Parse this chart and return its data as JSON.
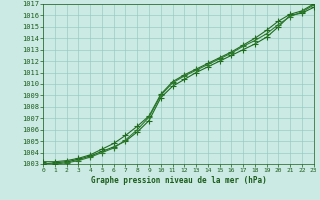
{
  "xlabel": "Graphe pression niveau de la mer (hPa)",
  "x": [
    0,
    1,
    2,
    3,
    4,
    5,
    6,
    7,
    8,
    9,
    10,
    11,
    12,
    13,
    14,
    15,
    16,
    17,
    18,
    19,
    20,
    21,
    22,
    23
  ],
  "line1": [
    1003.0,
    1003.1,
    1003.2,
    1003.4,
    1003.7,
    1004.1,
    1004.5,
    1005.0,
    1005.8,
    1006.8,
    1008.8,
    1009.8,
    1010.4,
    1011.0,
    1011.5,
    1012.0,
    1012.5,
    1013.0,
    1013.5,
    1014.1,
    1015.0,
    1016.0,
    1016.2,
    1016.7
  ],
  "line2": [
    1003.2,
    1003.2,
    1003.3,
    1003.5,
    1003.8,
    1004.3,
    1004.8,
    1005.5,
    1006.3,
    1007.2,
    1009.1,
    1010.2,
    1010.8,
    1011.3,
    1011.8,
    1012.3,
    1012.8,
    1013.4,
    1014.0,
    1014.7,
    1015.5,
    1016.1,
    1016.4,
    1017.0
  ],
  "line3": [
    1003.0,
    1003.0,
    1003.1,
    1003.3,
    1003.6,
    1004.0,
    1004.4,
    1005.1,
    1006.0,
    1007.1,
    1009.0,
    1010.1,
    1010.7,
    1011.2,
    1011.7,
    1012.2,
    1012.7,
    1013.3,
    1013.8,
    1014.4,
    1015.2,
    1015.9,
    1016.3,
    1016.9
  ],
  "line_color1": "#1a6b1a",
  "line_color2": "#236b23",
  "line_color3": "#2d7a2d",
  "bg_color": "#cceae4",
  "grid_color": "#99ccc4",
  "text_color": "#1a5c1a",
  "ylim_min": 1003,
  "ylim_max": 1017,
  "yticks": [
    1003,
    1004,
    1005,
    1006,
    1007,
    1008,
    1009,
    1010,
    1011,
    1012,
    1013,
    1014,
    1015,
    1016,
    1017
  ],
  "marker": "+",
  "marker_size": 4,
  "line_width": 0.8,
  "tick_fontsize": 5,
  "xlabel_fontsize": 5.5
}
